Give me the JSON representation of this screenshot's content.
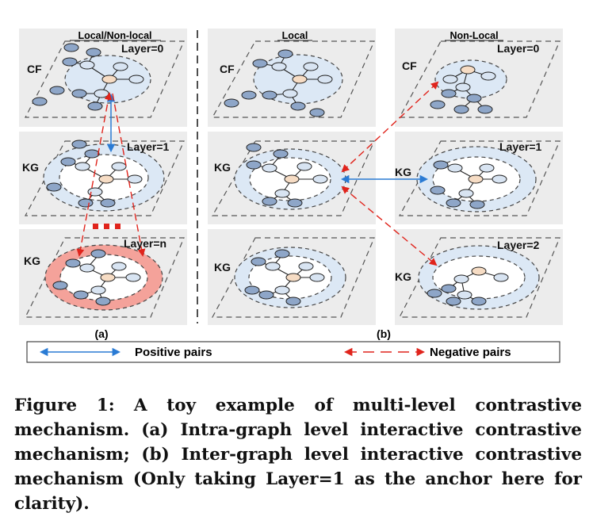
{
  "figure": {
    "panel_a": {
      "header": "Local/Non-local",
      "label": "(a)",
      "layers": [
        {
          "side_label": "CF",
          "layer_label": "Layer=0"
        },
        {
          "side_label": "KG",
          "layer_label": "Layer=1"
        },
        {
          "side_label": "KG",
          "layer_label": "Layer=n"
        }
      ],
      "ellipsis": "..."
    },
    "panel_b_local": {
      "header": "Local",
      "layers": [
        {
          "side_label": "CF"
        },
        {
          "side_label": "KG"
        },
        {
          "side_label": "KG"
        }
      ]
    },
    "panel_b_nonlocal": {
      "header": "Non-Local",
      "layers": [
        {
          "side_label": "CF",
          "layer_label": "Layer=0"
        },
        {
          "side_label": "KG",
          "layer_label": "Layer=1"
        },
        {
          "side_label": "KG",
          "layer_label": "Layer=2"
        }
      ]
    },
    "panel_b_label": "(b)",
    "legend": {
      "positive": "Positive pairs",
      "negative": "Negative pairs"
    },
    "colors": {
      "positive": "#2a7bd4",
      "negative": "#e0241c",
      "halo": "#dce8f5",
      "halo_highlight": "#f4a29a",
      "node_fill": "#8ea6c8",
      "node_center": "#f6dcc4",
      "panel_bg": "#ececec"
    }
  },
  "caption": {
    "lead": "Figure 1:",
    "text": "A toy example of multi-level contrastive mechanism. (a) Intra-graph level interactive contrastive mechanism; (b) Inter-graph level interactive contrastive mechanism (Only taking Layer=1 as the anchor here for clarity)."
  }
}
